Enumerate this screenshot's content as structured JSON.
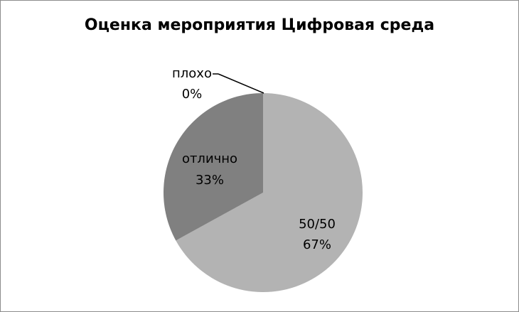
{
  "chart_data": {
    "type": "pie",
    "title": "Оценка мероприятия Цифровая среда",
    "slices": [
      {
        "label": "50/50",
        "value": 67,
        "display": "67%",
        "color": "#b3b3b3"
      },
      {
        "label": "отлично",
        "value": 33,
        "display": "33%",
        "color": "#808080"
      },
      {
        "label": "плохо",
        "value": 0,
        "display": "0%",
        "color": "#5a5a5a"
      }
    ],
    "start_angle": "top, clockwise",
    "legend": "none"
  }
}
